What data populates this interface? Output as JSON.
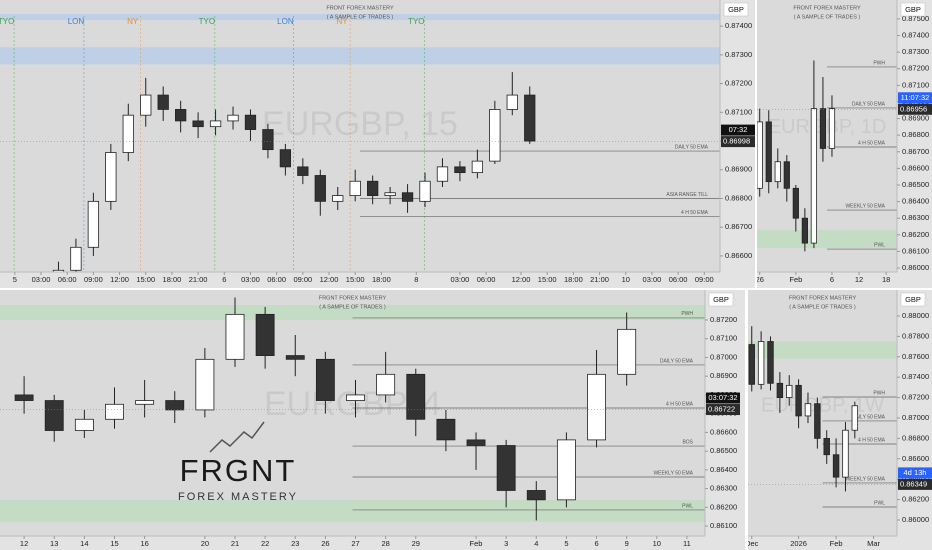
{
  "chart_data": [
    {
      "type": "candlestick",
      "title": "FRONT FOREX MASTERY",
      "subtitle": "( A SAMPLE OF TRADES )",
      "currency": "GBP",
      "watermark": "EURGBP, 15",
      "xlim": [
        -1.7,
        80.8
      ],
      "xticks": [
        {
          "value": 0,
          "label": "5"
        },
        {
          "value": 3,
          "label": "03:00"
        },
        {
          "value": 6,
          "label": "06:00"
        },
        {
          "value": 9,
          "label": "09:00"
        },
        {
          "value": 12,
          "label": "12:00"
        },
        {
          "value": 15,
          "label": "15:00"
        },
        {
          "value": 18,
          "label": "18:00"
        },
        {
          "value": 21,
          "label": "21:00"
        },
        {
          "value": 24,
          "label": "6"
        },
        {
          "value": 27,
          "label": "03:00"
        },
        {
          "value": 30,
          "label": "06:00"
        },
        {
          "value": 33,
          "label": "09:00"
        },
        {
          "value": 36,
          "label": "12:00"
        },
        {
          "value": 39,
          "label": "15:00"
        },
        {
          "value": 42,
          "label": "18:00"
        },
        {
          "value": 46,
          "label": "8"
        },
        {
          "value": 51,
          "label": "03:00"
        },
        {
          "value": 54,
          "label": "06:00"
        },
        {
          "value": 58,
          "label": "12:00"
        },
        {
          "value": 61,
          "label": "15:00"
        },
        {
          "value": 64,
          "label": "18:00"
        },
        {
          "value": 67,
          "label": "21:00"
        },
        {
          "value": 70,
          "label": "10"
        },
        {
          "value": 73,
          "label": "03:00"
        },
        {
          "value": 76,
          "label": "06:00"
        },
        {
          "value": 79,
          "label": "09:00"
        }
      ],
      "ylim": [
        0.86544,
        0.87491
      ],
      "yticks": [
        {
          "value": 0.874,
          "label": "0.87400"
        },
        {
          "value": 0.873,
          "label": "0.87300"
        },
        {
          "value": 0.872,
          "label": "0.87200"
        },
        {
          "value": 0.871,
          "label": "0.87100"
        },
        {
          "value": 0.87,
          "label": "0.87000"
        },
        {
          "value": 0.869,
          "label": "0.86900"
        },
        {
          "value": 0.868,
          "label": "0.86800"
        },
        {
          "value": 0.867,
          "label": "0.86700"
        },
        {
          "value": 0.866,
          "label": "0.86600"
        }
      ],
      "up_color": "#ffffff",
      "down_color": "#333333",
      "x": [
        5,
        7,
        9,
        11,
        13,
        15,
        17,
        19,
        21,
        23,
        25,
        27,
        29,
        31,
        33,
        35,
        37,
        39,
        41,
        43,
        45,
        47,
        49,
        51,
        53,
        55,
        57,
        59
      ],
      "open": [
        0.8652,
        0.8655,
        0.8663,
        0.8679,
        0.8696,
        0.8709,
        0.8716,
        0.8711,
        0.8707,
        0.8705,
        0.8707,
        0.8709,
        0.8704,
        0.8697,
        0.8691,
        0.8688,
        0.8679,
        0.8681,
        0.8686,
        0.8681,
        0.8682,
        0.8679,
        0.8686,
        0.8691,
        0.8689,
        0.8693,
        0.8711,
        0.8716
      ],
      "high": [
        0.8658,
        0.8666,
        0.8682,
        0.8699,
        0.8713,
        0.8722,
        0.8719,
        0.8714,
        0.871,
        0.8711,
        0.8712,
        0.8711,
        0.8706,
        0.8699,
        0.8694,
        0.869,
        0.8684,
        0.869,
        0.8688,
        0.8684,
        0.8685,
        0.8689,
        0.8694,
        0.8693,
        0.8697,
        0.8714,
        0.8724,
        0.8719
      ],
      "low": [
        0.8649,
        0.8653,
        0.866,
        0.8676,
        0.8693,
        0.8705,
        0.8707,
        0.8703,
        0.8701,
        0.8702,
        0.8704,
        0.87,
        0.8694,
        0.8688,
        0.8685,
        0.8674,
        0.8676,
        0.8679,
        0.8678,
        0.8678,
        0.8675,
        0.8677,
        0.8684,
        0.8686,
        0.8687,
        0.8692,
        0.8709,
        0.8699
      ],
      "close": [
        0.8655,
        0.8663,
        0.8679,
        0.8696,
        0.8709,
        0.8716,
        0.8711,
        0.8707,
        0.8705,
        0.8707,
        0.8709,
        0.8704,
        0.8697,
        0.8691,
        0.8688,
        0.8679,
        0.8681,
        0.8686,
        0.8681,
        0.8682,
        0.8679,
        0.8686,
        0.8691,
        0.8689,
        0.8693,
        0.8711,
        0.8716,
        0.87
      ],
      "levels": [
        {
          "label": "DAILY 50 EMA",
          "value": 0.86965
        },
        {
          "label": "ASIA RANGE TILL",
          "value": 0.868
        },
        {
          "label": "4 H 50 EMA",
          "value": 0.86737
        }
      ],
      "zones": [
        {
          "from": 0.87421,
          "to": 0.87442,
          "color": "#b9cde8"
        },
        {
          "from": 0.87267,
          "to": 0.87326,
          "color": "#b9cde8"
        }
      ],
      "sessions": [
        {
          "label": "TYO",
          "x": -1,
          "color": "#3aa34a"
        },
        {
          "label": "LON",
          "x": 7,
          "color": "#3d7fd6"
        },
        {
          "label": "NY",
          "x": 13.5,
          "color": "#e8902a"
        },
        {
          "label": "TYO",
          "x": 22,
          "color": "#3aa34a"
        },
        {
          "label": "LON",
          "x": 31,
          "color": "#3d7fd6"
        },
        {
          "label": "NY",
          "x": 37.5,
          "color": "#e8902a"
        },
        {
          "label": "TYO",
          "x": 46,
          "color": "#3aa34a"
        }
      ],
      "last_price": 0.86998,
      "countdown": "07:32",
      "countdown_color": "#111111"
    },
    {
      "type": "candlestick",
      "title": "FRONT FOREX MASTERY",
      "subtitle": "( A SAMPLE OF TRADES )",
      "currency": "GBP",
      "watermark": "EURGBP, 1D",
      "xlim": [
        -0.3,
        15.2
      ],
      "xticks": [
        {
          "value": 0,
          "label": "26"
        },
        {
          "value": 4,
          "label": "Feb"
        },
        {
          "value": 8,
          "label": "6"
        },
        {
          "value": 11,
          "label": "12"
        },
        {
          "value": 14,
          "label": "18"
        }
      ],
      "ylim": [
        0.85976,
        0.87596
      ],
      "yticks": [
        {
          "value": 0.875,
          "label": "0.87500"
        },
        {
          "value": 0.874,
          "label": "0.87400"
        },
        {
          "value": 0.873,
          "label": "0.87300"
        },
        {
          "value": 0.872,
          "label": "0.87200"
        },
        {
          "value": 0.871,
          "label": "0.87100"
        },
        {
          "value": 0.87,
          "label": "0.87000"
        },
        {
          "value": 0.869,
          "label": "0.86900"
        },
        {
          "value": 0.868,
          "label": "0.86800"
        },
        {
          "value": 0.867,
          "label": "0.86700"
        },
        {
          "value": 0.866,
          "label": "0.86600"
        },
        {
          "value": 0.865,
          "label": "0.86500"
        },
        {
          "value": 0.864,
          "label": "0.86400"
        },
        {
          "value": 0.863,
          "label": "0.86300"
        },
        {
          "value": 0.862,
          "label": "0.86200"
        },
        {
          "value": 0.861,
          "label": "0.86100"
        },
        {
          "value": 0.86,
          "label": "0.86000"
        }
      ],
      "up_color": "#ffffff",
      "down_color": "#333333",
      "x": [
        0,
        1,
        2,
        3,
        4,
        5,
        6,
        7,
        8
      ],
      "open": [
        0.8648,
        0.8688,
        0.8652,
        0.8664,
        0.8648,
        0.863,
        0.8615,
        0.8696,
        0.8672
      ],
      "high": [
        0.8696,
        0.8695,
        0.8672,
        0.8668,
        0.865,
        0.8636,
        0.8725,
        0.8715,
        0.8704
      ],
      "low": [
        0.8643,
        0.8645,
        0.8648,
        0.864,
        0.8622,
        0.861,
        0.8612,
        0.8664,
        0.8667
      ],
      "close": [
        0.8688,
        0.8652,
        0.8664,
        0.8648,
        0.863,
        0.8615,
        0.8696,
        0.8672,
        0.8696
      ],
      "levels": [
        {
          "label": "PWH",
          "value": 0.87211
        },
        {
          "label": "DAILY 50 EMA",
          "value": 0.86964
        },
        {
          "label": "4 H 50 EMA",
          "value": 0.86729
        },
        {
          "label": "WEEKLY 50 EMA",
          "value": 0.86349
        },
        {
          "label": "PWL",
          "value": 0.86114
        }
      ],
      "zones": [
        {
          "from": 0.8612,
          "to": 0.86229,
          "color": "#bfdcbf"
        }
      ],
      "last_price": 0.86956,
      "countdown": "11:07:32",
      "countdown_color": "#2962ff"
    },
    {
      "type": "candlestick",
      "title": "FRGNT FOREX MASTERY",
      "subtitle": "( A SAMPLE OF TRADES )",
      "currency": "GBP",
      "watermark": "EURGBP, 4",
      "logo_title": "FRGNT",
      "logo_subtitle": "FOREX MASTERY",
      "xlim": [
        -0.8,
        22.6
      ],
      "xticks": [
        {
          "value": 0,
          "label": "12"
        },
        {
          "value": 1,
          "label": "13"
        },
        {
          "value": 2,
          "label": "14"
        },
        {
          "value": 3,
          "label": "15"
        },
        {
          "value": 4,
          "label": "16"
        },
        {
          "value": 6,
          "label": "20"
        },
        {
          "value": 7,
          "label": "21"
        },
        {
          "value": 8,
          "label": "22"
        },
        {
          "value": 9,
          "label": "23"
        },
        {
          "value": 10,
          "label": "26"
        },
        {
          "value": 11,
          "label": "27"
        },
        {
          "value": 12,
          "label": "28"
        },
        {
          "value": 13,
          "label": "29"
        },
        {
          "value": 15,
          "label": "Feb"
        },
        {
          "value": 16,
          "label": "3"
        },
        {
          "value": 17,
          "label": "4"
        },
        {
          "value": 18,
          "label": "5"
        },
        {
          "value": 19,
          "label": "6"
        },
        {
          "value": 20,
          "label": "9"
        },
        {
          "value": 21,
          "label": "10"
        },
        {
          "value": 22,
          "label": "11"
        }
      ],
      "ylim": [
        0.86047,
        0.87328
      ],
      "yticks": [
        {
          "value": 0.872,
          "label": "0.87200"
        },
        {
          "value": 0.871,
          "label": "0.87100"
        },
        {
          "value": 0.87,
          "label": "0.87000"
        },
        {
          "value": 0.869,
          "label": "0.86900"
        },
        {
          "value": 0.868,
          "label": "0.86800"
        },
        {
          "value": 0.867,
          "label": "0.86700"
        },
        {
          "value": 0.866,
          "label": "0.86600"
        },
        {
          "value": 0.865,
          "label": "0.86500"
        },
        {
          "value": 0.864,
          "label": "0.86400"
        },
        {
          "value": 0.863,
          "label": "0.86300"
        },
        {
          "value": 0.862,
          "label": "0.86200"
        },
        {
          "value": 0.861,
          "label": "0.86100"
        }
      ],
      "up_color": "#ffffff",
      "down_color": "#333333",
      "x": [
        0,
        1,
        2,
        3,
        4,
        5,
        6,
        7,
        8,
        9,
        10,
        11,
        12,
        13,
        14,
        15,
        16,
        17,
        18,
        19,
        20
      ],
      "open": [
        0.868,
        0.8677,
        0.8661,
        0.8667,
        0.8675,
        0.8677,
        0.8672,
        0.8699,
        0.8723,
        0.8701,
        0.8699,
        0.8677,
        0.868,
        0.8691,
        0.8667,
        0.8656,
        0.8653,
        0.8629,
        0.8624,
        0.8656,
        0.8691
      ],
      "high": [
        0.869,
        0.868,
        0.8672,
        0.8684,
        0.8688,
        0.8682,
        0.8705,
        0.8732,
        0.8727,
        0.8712,
        0.8703,
        0.8688,
        0.8703,
        0.8694,
        0.8672,
        0.866,
        0.8656,
        0.8634,
        0.866,
        0.8704,
        0.8724
      ],
      "low": [
        0.867,
        0.8655,
        0.8657,
        0.8662,
        0.8668,
        0.8665,
        0.8668,
        0.8695,
        0.8694,
        0.869,
        0.867,
        0.8668,
        0.8676,
        0.8658,
        0.865,
        0.864,
        0.862,
        0.8613,
        0.862,
        0.8652,
        0.8685
      ],
      "close": [
        0.8677,
        0.8661,
        0.8667,
        0.8675,
        0.8677,
        0.8672,
        0.8699,
        0.8723,
        0.8701,
        0.8699,
        0.8677,
        0.868,
        0.8691,
        0.8667,
        0.8656,
        0.8653,
        0.8629,
        0.8624,
        0.8656,
        0.8691,
        0.8715
      ],
      "levels": [
        {
          "label": "PWH",
          "value": 0.87211
        },
        {
          "label": "DAILY 50 EMA",
          "value": 0.8696
        },
        {
          "label": "4 H 50 EMA",
          "value": 0.8673
        },
        {
          "label": "BOS",
          "value": 0.86527
        },
        {
          "label": "WEEKLY 50 EMA",
          "value": 0.86362
        },
        {
          "label": "PWL",
          "value": 0.86186
        }
      ],
      "zones": [
        {
          "from": 0.872,
          "to": 0.8728,
          "color": "#bfdcbf"
        },
        {
          "from": 0.86122,
          "to": 0.86239,
          "color": "#bfdcbf"
        }
      ],
      "last_price": 0.86722,
      "countdown": "03:07:32",
      "countdown_color": "#111111"
    },
    {
      "type": "candlestick",
      "title": "FRGNT FOREX MASTERY",
      "subtitle": "( A SAMPLE OF TRADES )",
      "currency": "GBP",
      "watermark": "EURGBP, 1W",
      "xlim": [
        -0.4,
        15.5
      ],
      "xticks": [
        {
          "value": 0,
          "label": "Dec"
        },
        {
          "value": 5,
          "label": "2026"
        },
        {
          "value": 9,
          "label": "Feb"
        },
        {
          "value": 13,
          "label": "Mar"
        }
      ],
      "ylim": [
        0.85843,
        0.88196
      ],
      "yticks": [
        {
          "value": 0.88,
          "label": "0.88000"
        },
        {
          "value": 0.878,
          "label": "0.87800"
        },
        {
          "value": 0.876,
          "label": "0.87600"
        },
        {
          "value": 0.874,
          "label": "0.87400"
        },
        {
          "value": 0.872,
          "label": "0.87200"
        },
        {
          "value": 0.87,
          "label": "0.87000"
        },
        {
          "value": 0.868,
          "label": "0.86800"
        },
        {
          "value": 0.866,
          "label": "0.86600"
        },
        {
          "value": 0.864,
          "label": "0.86400"
        },
        {
          "value": 0.862,
          "label": "0.86200"
        },
        {
          "value": 0.86,
          "label": "0.86000"
        }
      ],
      "up_color": "#ffffff",
      "down_color": "#333333",
      "x": [
        0,
        1,
        2,
        3,
        4,
        5,
        6,
        7,
        8,
        9,
        10,
        11
      ],
      "open": [
        0.8772,
        0.8733,
        0.8775,
        0.8734,
        0.872,
        0.8732,
        0.8702,
        0.8714,
        0.868,
        0.8664,
        0.8642,
        0.8688
      ],
      "high": [
        0.879,
        0.8785,
        0.878,
        0.8745,
        0.8742,
        0.8738,
        0.8725,
        0.872,
        0.8688,
        0.868,
        0.8696,
        0.8716
      ],
      "low": [
        0.8726,
        0.8728,
        0.8727,
        0.8705,
        0.8712,
        0.869,
        0.8695,
        0.867,
        0.8655,
        0.8632,
        0.8628,
        0.868
      ],
      "close": [
        0.8733,
        0.8775,
        0.8734,
        0.872,
        0.8732,
        0.8702,
        0.8714,
        0.868,
        0.8664,
        0.8642,
        0.8688,
        0.8712
      ],
      "levels": [
        {
          "label": "PWH",
          "value": 0.87206
        },
        {
          "label": "DAILY 50 EMA",
          "value": 0.86971
        },
        {
          "label": "4 H 50 EMA",
          "value": 0.86745
        },
        {
          "label": "WEEKLY 50 EMA",
          "value": 0.86363
        },
        {
          "label": "PWL",
          "value": 0.86127
        }
      ],
      "zones": [
        {
          "from": 0.8758,
          "to": 0.8775,
          "color": "#bfdcbf"
        }
      ],
      "last_price": 0.86349,
      "countdown": "4d 13h",
      "countdown_color": "#2962ff"
    }
  ]
}
